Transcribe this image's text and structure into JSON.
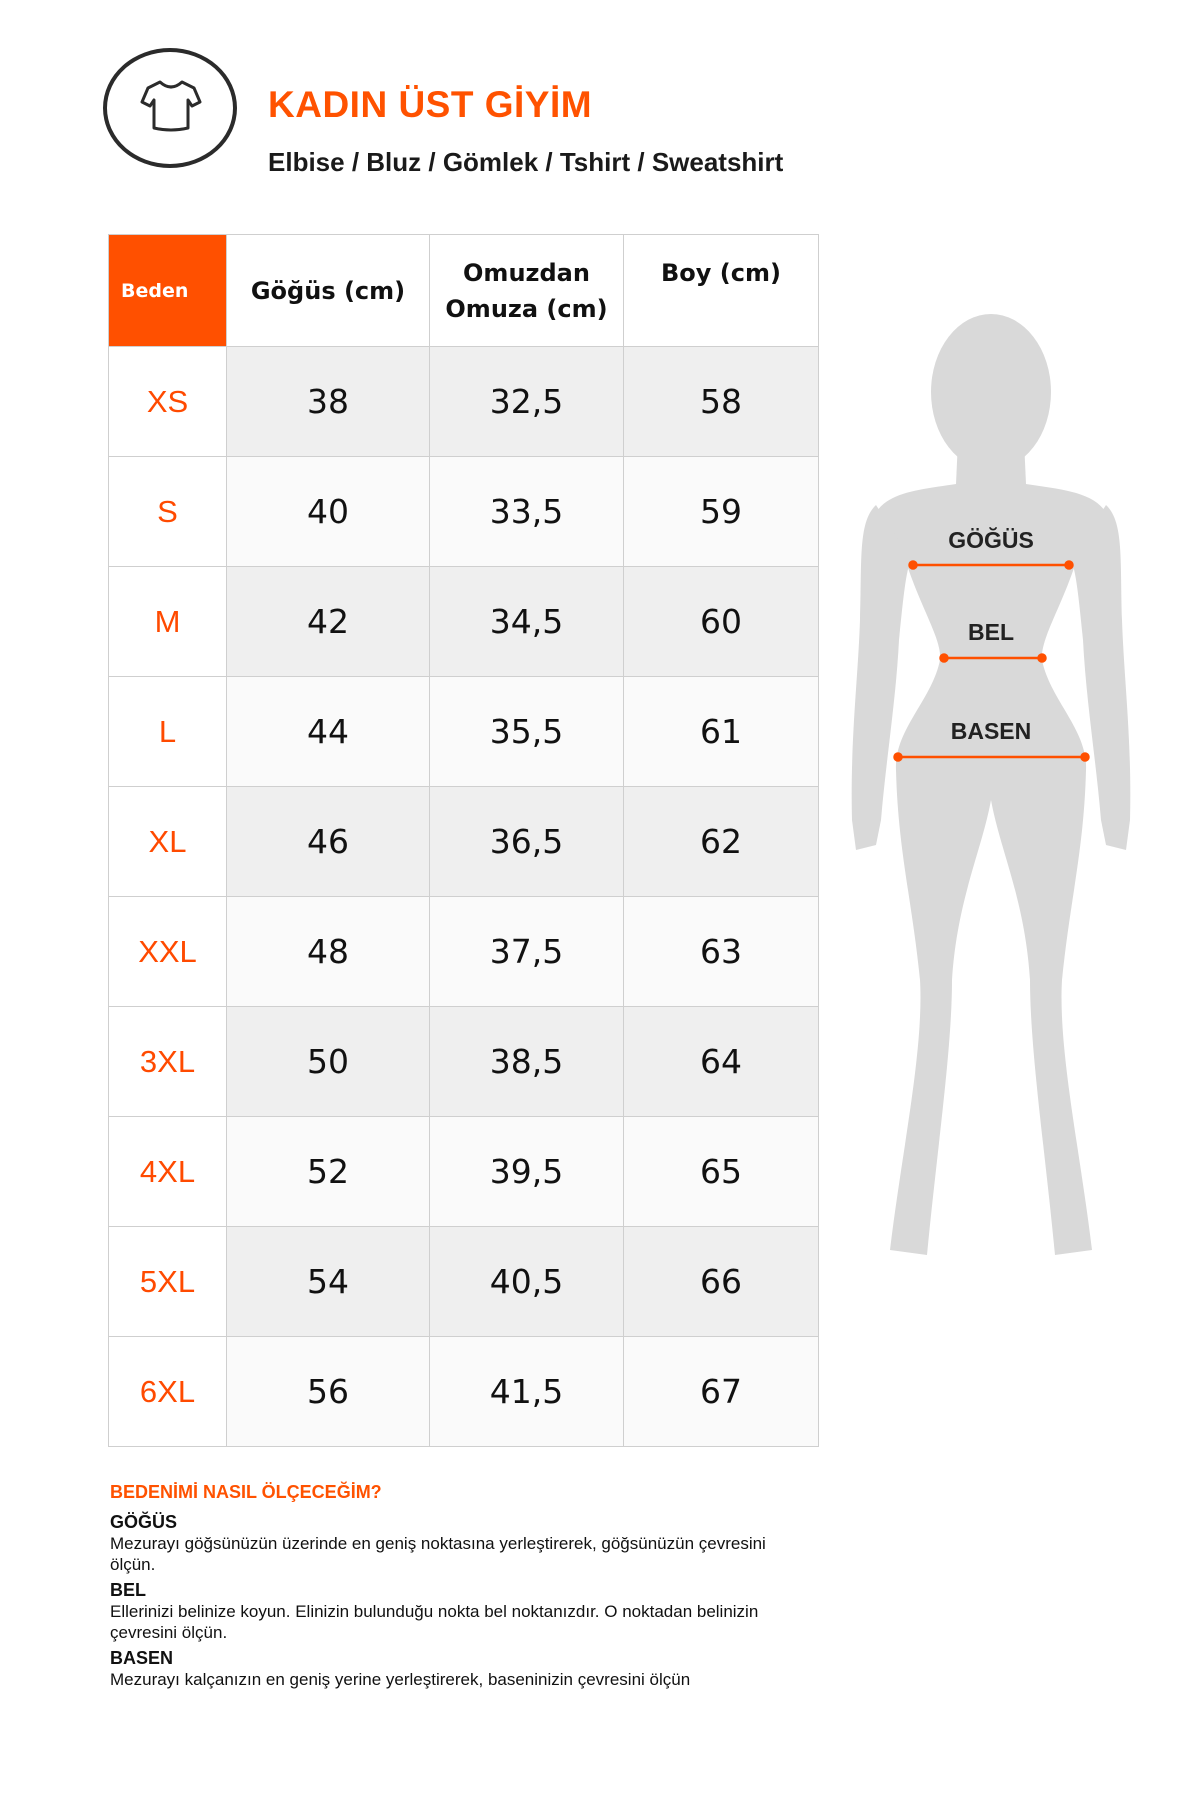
{
  "header": {
    "icon": "tshirt-icon",
    "title": "KADIN ÜST GİYİM",
    "subtitle": "Elbise / Bluz / Gömlek / Tshirt / Sweatshirt"
  },
  "table": {
    "columns": [
      "Beden",
      "Göğüs (cm)",
      "Omuzdan Omuza (cm)",
      "Boy (cm)"
    ],
    "rows": [
      [
        "XS",
        "38",
        "32,5",
        "58"
      ],
      [
        "S",
        "40",
        "33,5",
        "59"
      ],
      [
        "M",
        "42",
        "34,5",
        "60"
      ],
      [
        "L",
        "44",
        "35,5",
        "61"
      ],
      [
        "XL",
        "46",
        "36,5",
        "62"
      ],
      [
        "XXL",
        "48",
        "37,5",
        "63"
      ],
      [
        "3XL",
        "50",
        "38,5",
        "64"
      ],
      [
        "4XL",
        "52",
        "39,5",
        "65"
      ],
      [
        "5XL",
        "54",
        "40,5",
        "66"
      ],
      [
        "6XL",
        "56",
        "41,5",
        "67"
      ]
    ]
  },
  "figure": {
    "labels": {
      "chest": "GÖĞÜS",
      "waist": "BEL",
      "hip": "BASEN"
    }
  },
  "howto": {
    "heading": "BEDENİMİ NASIL ÖLÇECEĞİM?",
    "sections": [
      {
        "title": "GÖĞÜS",
        "text": "Mezurayı göğsünüzün üzerinde en geniş noktasına yerleştirerek, göğsünüzün çevresini ölçün."
      },
      {
        "title": "BEL",
        "text": "Ellerinizi belinize koyun. Elinizin bulunduğu nokta bel noktanızdır. O noktadan belinizin çevresini ölçün."
      },
      {
        "title": "BASEN",
        "text": "Mezurayı kalçanızın en geniş yerine yerleştirerek, baseninizin çevresini ölçün"
      }
    ]
  },
  "colors": {
    "accent": "#ff5000",
    "silhouette": "#d9d9d9"
  }
}
